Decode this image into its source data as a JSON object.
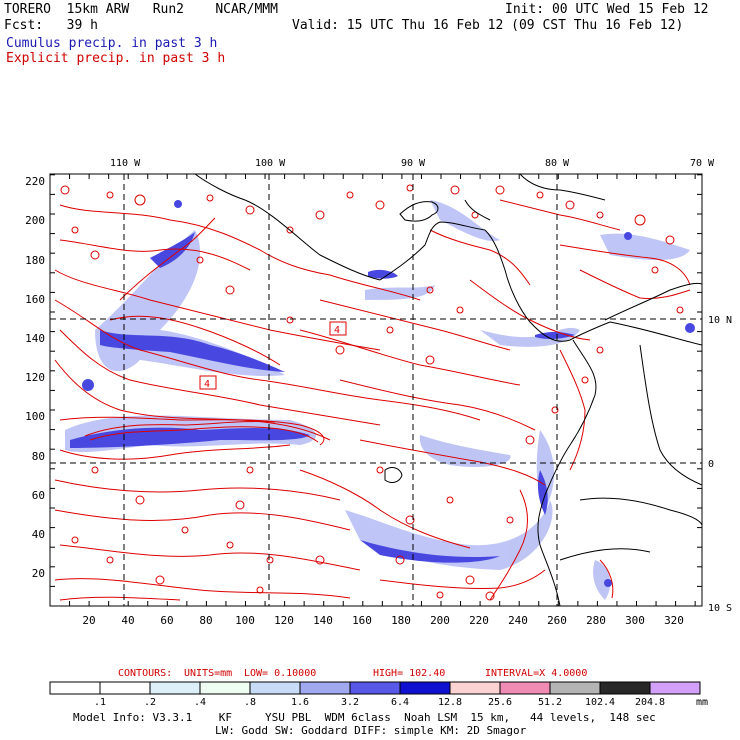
{
  "header": {
    "model": "TORERO  15km ARW   Run2    NCAR/MMM",
    "init": "Init: 00 UTC Wed 15 Feb 12",
    "forecast": "Fcst:   39 h",
    "valid": "Valid: 15 UTC Thu 16 Feb 12 (09 CST Thu 16 Feb 12)",
    "cumulus_label": "Cumulus precip. in past 3 h",
    "explicit_label": "Explicit precip. in past 3 h"
  },
  "axes": {
    "top_lon": [
      "110 W",
      "100 W",
      "90 W",
      "80 W",
      "70 W"
    ],
    "right_lat": [
      "10 N",
      "0",
      "10 S"
    ],
    "left_y": [
      "220",
      "200",
      "180",
      "160",
      "140",
      "120",
      "100",
      "80",
      "60",
      "40",
      "20"
    ],
    "bottom_x": [
      "20",
      "40",
      "60",
      "80",
      "100",
      "120",
      "140",
      "160",
      "180",
      "200",
      "220",
      "240",
      "260",
      "280",
      "300",
      "320"
    ]
  },
  "annotations": {
    "box1": "4",
    "box2": "4"
  },
  "contours_line": {
    "contours": "CONTOURS:",
    "units": "UNITS=mm",
    "low": "LOW=  0.10000",
    "high": "HIGH=  102.40",
    "interval": "INTERVAL=X  4.0000"
  },
  "colorbar": {
    "unit": "mm",
    "labels": [
      ".1",
      ".2",
      ".4",
      ".8",
      "1.6",
      "3.2",
      "6.4",
      "12.8",
      "25.6",
      "51.2",
      "102.4",
      "204.8"
    ],
    "colors": [
      "#ffffff",
      "#ffffff",
      "#dcf0fa",
      "#eefcf2",
      "#c8dcf8",
      "#a0a8f0",
      "#5858e8",
      "#1010d0",
      "#fad2d2",
      "#f08cb4",
      "#b4b4b4",
      "#282828",
      "#d2a0f8"
    ]
  },
  "footer": {
    "line1": "Model Info: V3.3.1    KF     YSU PBL  WDM 6class  Noah LSM  15 km,   44 levels,  148 sec",
    "line2": "LW: Godd SW: Goddard DIFF: simple KM: 2D Smagor"
  },
  "colors": {
    "explicit": "#dd0000",
    "cumulus": "#3a3ae0",
    "coast": "#000000"
  }
}
